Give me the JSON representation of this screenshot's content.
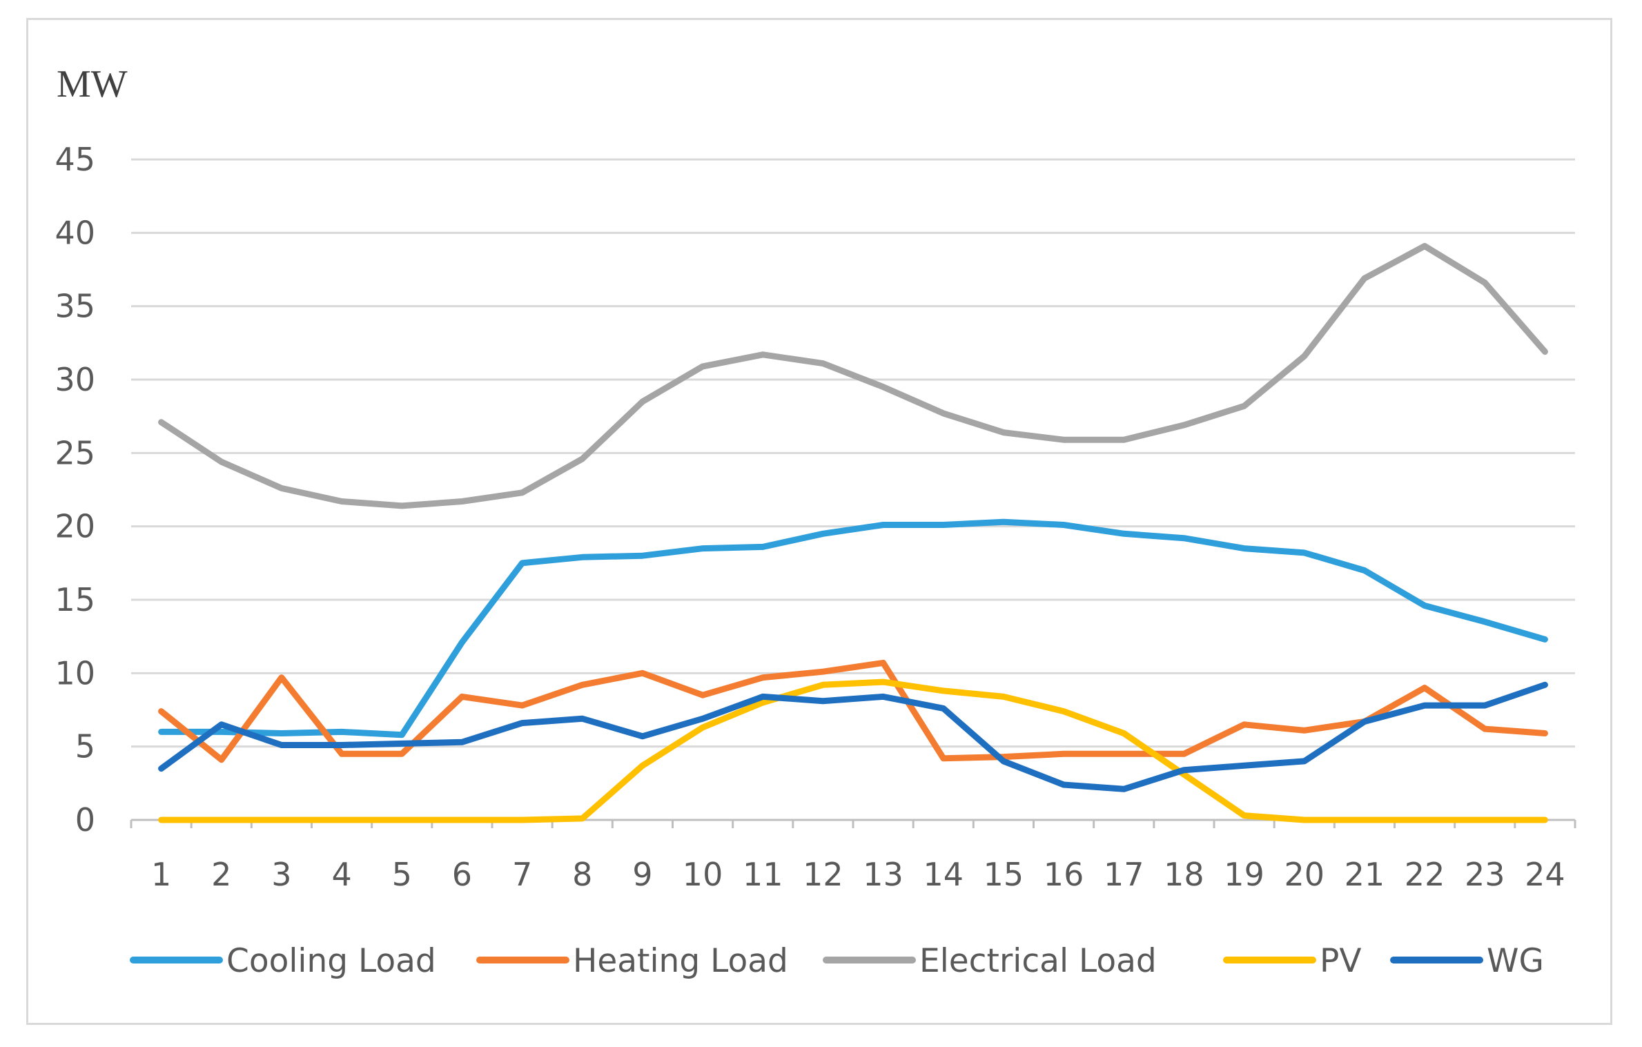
{
  "chart_data": {
    "type": "line",
    "title": "",
    "ylabel": "MW",
    "xlabel": "",
    "ylim": [
      0,
      45
    ],
    "yticks": [
      0,
      5,
      10,
      15,
      20,
      25,
      30,
      35,
      40,
      45
    ],
    "grid": true,
    "legend_position": "bottom",
    "categories": [
      "1",
      "2",
      "3",
      "4",
      "5",
      "6",
      "7",
      "8",
      "9",
      "10",
      "11",
      "12",
      "13",
      "14",
      "15",
      "16",
      "17",
      "18",
      "19",
      "20",
      "21",
      "22",
      "23",
      "24"
    ],
    "series": [
      {
        "name": "Cooling Load",
        "color": "#2E9FDB",
        "values": [
          6.0,
          6.0,
          5.9,
          6.0,
          5.8,
          12.1,
          17.5,
          17.9,
          18.0,
          18.5,
          18.6,
          19.5,
          20.1,
          20.1,
          20.3,
          20.1,
          19.5,
          19.2,
          18.5,
          18.2,
          17.0,
          14.6,
          13.5,
          12.3
        ]
      },
      {
        "name": "Heating Load",
        "color": "#F47C30",
        "values": [
          7.4,
          4.1,
          9.7,
          4.5,
          4.5,
          8.4,
          7.8,
          9.2,
          10.0,
          8.5,
          9.7,
          10.1,
          10.7,
          4.2,
          4.3,
          4.5,
          4.5,
          4.5,
          6.5,
          6.1,
          6.7,
          9.0,
          6.2,
          5.9
        ]
      },
      {
        "name": "Electrical Load",
        "color": "#A5A5A5",
        "values": [
          27.1,
          24.4,
          22.6,
          21.7,
          21.4,
          21.7,
          22.3,
          24.6,
          28.5,
          30.9,
          31.7,
          31.1,
          29.5,
          27.7,
          26.4,
          25.9,
          25.9,
          26.9,
          28.2,
          31.6,
          36.9,
          39.1,
          36.6,
          31.9
        ]
      },
      {
        "name": "PV",
        "color": "#FFC000",
        "values": [
          0,
          0,
          0,
          0,
          0,
          0,
          0,
          0.1,
          3.7,
          6.3,
          8.0,
          9.2,
          9.4,
          8.8,
          8.4,
          7.4,
          5.9,
          3.1,
          0.3,
          0,
          0,
          0,
          0,
          0
        ]
      },
      {
        "name": "WG",
        "color": "#1F6FC0",
        "values": [
          3.5,
          6.5,
          5.1,
          5.1,
          5.2,
          5.3,
          6.6,
          6.9,
          5.7,
          6.9,
          8.4,
          8.1,
          8.4,
          7.6,
          4.0,
          2.4,
          2.1,
          3.4,
          3.7,
          4.0,
          6.7,
          7.8,
          7.8,
          9.2
        ]
      }
    ]
  }
}
